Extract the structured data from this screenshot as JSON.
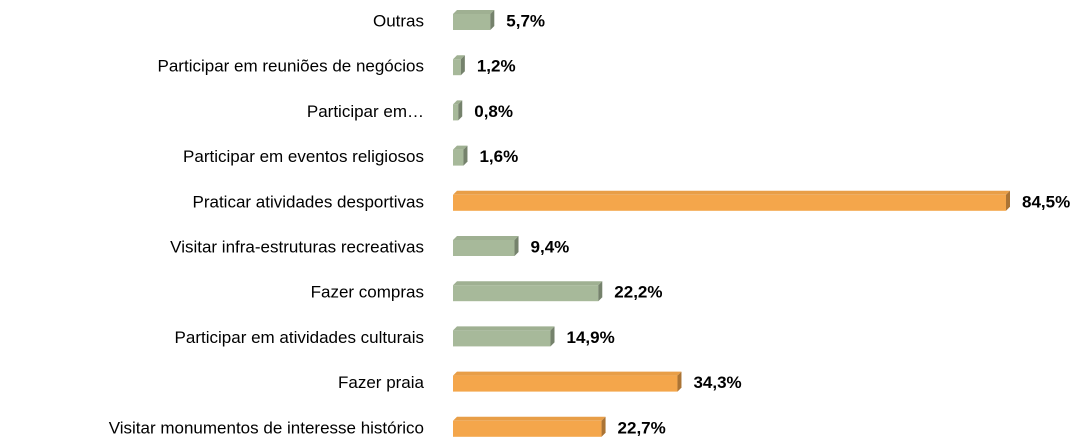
{
  "chart_data": {
    "type": "bar",
    "orientation": "horizontal",
    "categories": [
      "Outras",
      "Participar em reuniões de negócios",
      "Participar em…",
      "Participar em eventos religiosos",
      "Praticar atividades desportivas",
      "Visitar infra-estruturas recreativas",
      "Fazer compras",
      "Participar em atividades culturais",
      "Fazer praia",
      "Visitar monumentos de interesse histórico"
    ],
    "values": [
      5.7,
      1.2,
      0.8,
      1.6,
      84.5,
      9.4,
      22.2,
      14.9,
      34.3,
      22.7
    ],
    "value_labels": [
      "5,7%",
      "1,2%",
      "0,8%",
      "1,6%",
      "84,5%",
      "9,4%",
      "22,2%",
      "14,9%",
      "34,3%",
      "22,7%"
    ],
    "colors": [
      "#a7b99a",
      "#a7b99a",
      "#a7b99a",
      "#a7b99a",
      "#f4a64b",
      "#a7b99a",
      "#a7b99a",
      "#a7b99a",
      "#f4a64b",
      "#f4a64b"
    ]
  }
}
